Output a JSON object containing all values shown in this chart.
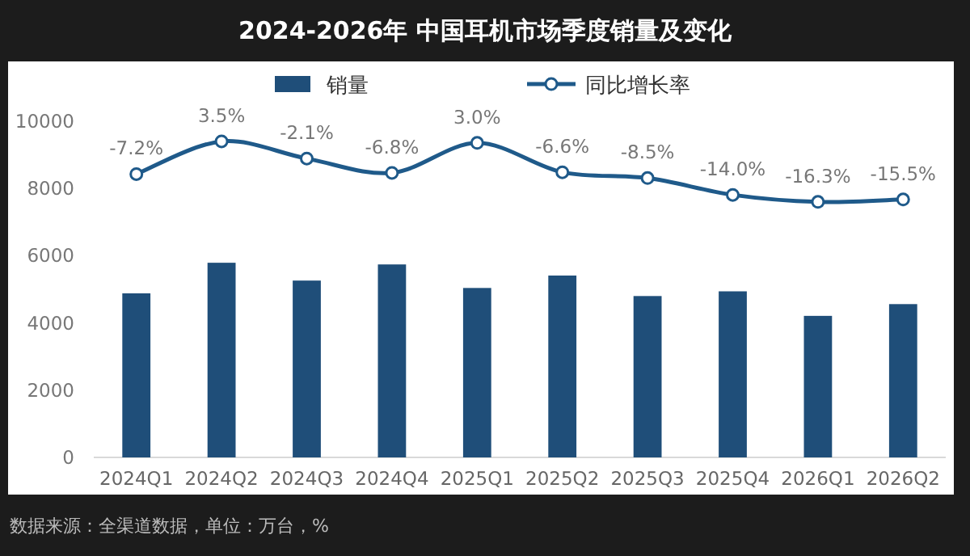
{
  "chart_data": {
    "type": "bar",
    "title": "2024-2026年 中国耳机市场季度销量及变化",
    "categories": [
      "2024Q1",
      "2024Q2",
      "2024Q3",
      "2024Q4",
      "2025Q1",
      "2025Q2",
      "2025Q3",
      "2025Q4",
      "2026Q1",
      "2026Q2"
    ],
    "series": [
      {
        "name": "销量",
        "color": "#1f4e79",
        "values": [
          4880,
          5790,
          5260,
          5740,
          5040,
          5410,
          4800,
          4940,
          4210,
          4560
        ]
      },
      {
        "name": "同比增长率",
        "type": "line",
        "axis": "y2",
        "color": "#1f5a8a",
        "values": [
          -7.2,
          3.5,
          -2.1,
          -6.8,
          3.0,
          -6.6,
          -8.5,
          -14.0,
          -16.3,
          -15.5
        ],
        "value_labels": [
          "-7.2%",
          "3.5%",
          "-2.1%",
          "-6.8%",
          "3.0%",
          "-6.6%",
          "-8.5%",
          "-14.0%",
          "-16.3%",
          "-15.5%"
        ]
      }
    ],
    "ylim": [
      0,
      10000
    ],
    "yticks": [
      0,
      2000,
      4000,
      6000,
      8000,
      10000
    ],
    "marker": "circle",
    "legend": "top",
    "grid": false,
    "annotations": [
      "数据来源：全渠道数据，单位：万台，%"
    ]
  }
}
